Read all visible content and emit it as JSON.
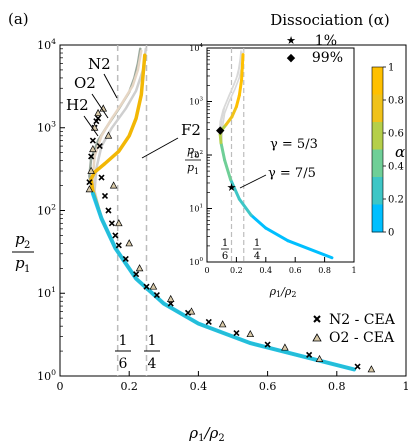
{
  "panel_label": "(a)",
  "colors": {
    "N2": "#9aa89c",
    "O2": "#e6d6c4",
    "H2": "#cfcfcf",
    "F2": "#f2b705",
    "cmap": [
      "#00bfff",
      "#3ec6c6",
      "#6fcf97",
      "#b5cf4a",
      "#f0c21a",
      "#ffc000"
    ],
    "refline": "#bdbdbd",
    "marker_O2_fill": "#d8c9a8"
  },
  "chart_data": [
    {
      "type": "line",
      "title": "",
      "xlabel": "ρ1/ρ2",
      "ylabel": "p2/p1",
      "xlim": [
        0,
        1
      ],
      "ylim": [
        1,
        10000
      ],
      "yscale": "log",
      "xticks": [
        "0",
        "0.2",
        "0.4",
        "0.6",
        "0.8",
        "1"
      ],
      "yticks": [
        "10^0",
        "10^1",
        "10^2",
        "10^3",
        "10^4"
      ],
      "vlines": [
        {
          "x": 0.1667,
          "label_num": "1",
          "label_den": "6"
        },
        {
          "x": 0.25,
          "label_num": "1",
          "label_den": "4"
        }
      ],
      "series": [
        {
          "name": "N2",
          "x": [
            0.85,
            0.55,
            0.4,
            0.3,
            0.22,
            0.16,
            0.12,
            0.095,
            0.085,
            0.09,
            0.11,
            0.14,
            0.17,
            0.2,
            0.215,
            0.225,
            0.232
          ],
          "y": [
            1.2,
            2.5,
            4.3,
            7.5,
            15,
            35,
            80,
            160,
            260,
            420,
            700,
            1100,
            1700,
            2700,
            4000,
            6000,
            9000
          ]
        },
        {
          "name": "O2",
          "x": [
            0.85,
            0.55,
            0.4,
            0.3,
            0.22,
            0.16,
            0.12,
            0.1,
            0.095,
            0.1,
            0.12,
            0.15,
            0.18,
            0.21,
            0.225,
            0.235
          ],
          "y": [
            1.2,
            2.5,
            4.3,
            7.5,
            15,
            35,
            80,
            150,
            260,
            450,
            800,
            1300,
            2000,
            3200,
            5000,
            8500
          ]
        },
        {
          "name": "H2",
          "x": [
            0.85,
            0.55,
            0.4,
            0.3,
            0.22,
            0.16,
            0.12,
            0.1,
            0.105,
            0.12,
            0.15,
            0.19,
            0.22,
            0.24,
            0.248
          ],
          "y": [
            1.2,
            2.5,
            4.3,
            7.5,
            15,
            35,
            80,
            170,
            320,
            600,
            1000,
            1700,
            2800,
            5000,
            9000
          ]
        },
        {
          "name": "F2",
          "x": [
            0.85,
            0.55,
            0.4,
            0.3,
            0.22,
            0.16,
            0.12,
            0.095,
            0.09,
            0.1,
            0.13,
            0.17,
            0.2,
            0.22,
            0.235,
            0.245
          ],
          "y": [
            1.2,
            2.5,
            4.3,
            7.5,
            15,
            35,
            80,
            170,
            240,
            290,
            370,
            520,
            800,
            1300,
            2500,
            7500
          ]
        }
      ],
      "markers": [
        {
          "name": "N2 - CEA",
          "symbol": "x",
          "x": [
            0.085,
            0.09,
            0.095,
            0.1,
            0.105,
            0.11,
            0.115,
            0.12,
            0.13,
            0.14,
            0.15,
            0.16,
            0.17,
            0.19,
            0.22,
            0.25,
            0.28,
            0.32,
            0.37,
            0.43,
            0.51,
            0.6,
            0.72,
            0.86
          ],
          "y": [
            220,
            450,
            700,
            1000,
            1200,
            1300,
            600,
            250,
            150,
            100,
            70,
            50,
            38,
            26,
            17,
            12,
            9.5,
            7.5,
            5.8,
            4.5,
            3.3,
            2.4,
            1.8,
            1.3
          ]
        },
        {
          "name": "O2 - CEA",
          "symbol": "triangle",
          "x": [
            0.085,
            0.09,
            0.095,
            0.1,
            0.11,
            0.125,
            0.14,
            0.155,
            0.17,
            0.2,
            0.23,
            0.27,
            0.32,
            0.38,
            0.47,
            0.55,
            0.65,
            0.75,
            0.9
          ],
          "y": [
            180,
            300,
            550,
            1000,
            1500,
            1700,
            800,
            200,
            70,
            40,
            20,
            12,
            8.5,
            6,
            4.2,
            3.2,
            2.2,
            1.6,
            1.2
          ]
        }
      ],
      "annotations": [
        "N2",
        "O2",
        "H2",
        "F2"
      ],
      "legend": {
        "placement": "bottom-right",
        "entries": [
          "N2 - CEA",
          "O2 - CEA"
        ]
      }
    },
    {
      "type": "line",
      "title": "Dissociation (α)",
      "xlabel": "ρ1/ρ2",
      "ylabel": "p2/p1",
      "xlim": [
        0,
        1
      ],
      "ylim": [
        1,
        10000
      ],
      "yscale": "log",
      "xticks": [
        "0",
        "0.2",
        "0.4",
        "0.6",
        "0.8",
        "1"
      ],
      "yticks": [
        "10^0",
        "10^1",
        "10^2",
        "10^3",
        "10^4"
      ],
      "legend": {
        "placement": "top",
        "entries": [
          {
            "symbol": "star",
            "label": "1%"
          },
          {
            "symbol": "diamond",
            "label": "99%"
          }
        ]
      },
      "gamma_labels": [
        "γ = 5/3",
        "γ = 7/5"
      ],
      "gamma_vlines": [
        {
          "x": 0.1667,
          "label_num": "1",
          "label_den": "6"
        },
        {
          "x": 0.25,
          "label_num": "1",
          "label_den": "4"
        }
      ],
      "points": [
        {
          "marker": "star",
          "x": 0.167,
          "y": 25
        },
        {
          "marker": "diamond",
          "x": 0.09,
          "y": 300
        }
      ],
      "colorbar": {
        "label": "α",
        "min": 0,
        "max": 1,
        "ticks": [
          "0",
          "0.2",
          "0.4",
          "0.6",
          "0.8",
          "1"
        ]
      }
    }
  ]
}
